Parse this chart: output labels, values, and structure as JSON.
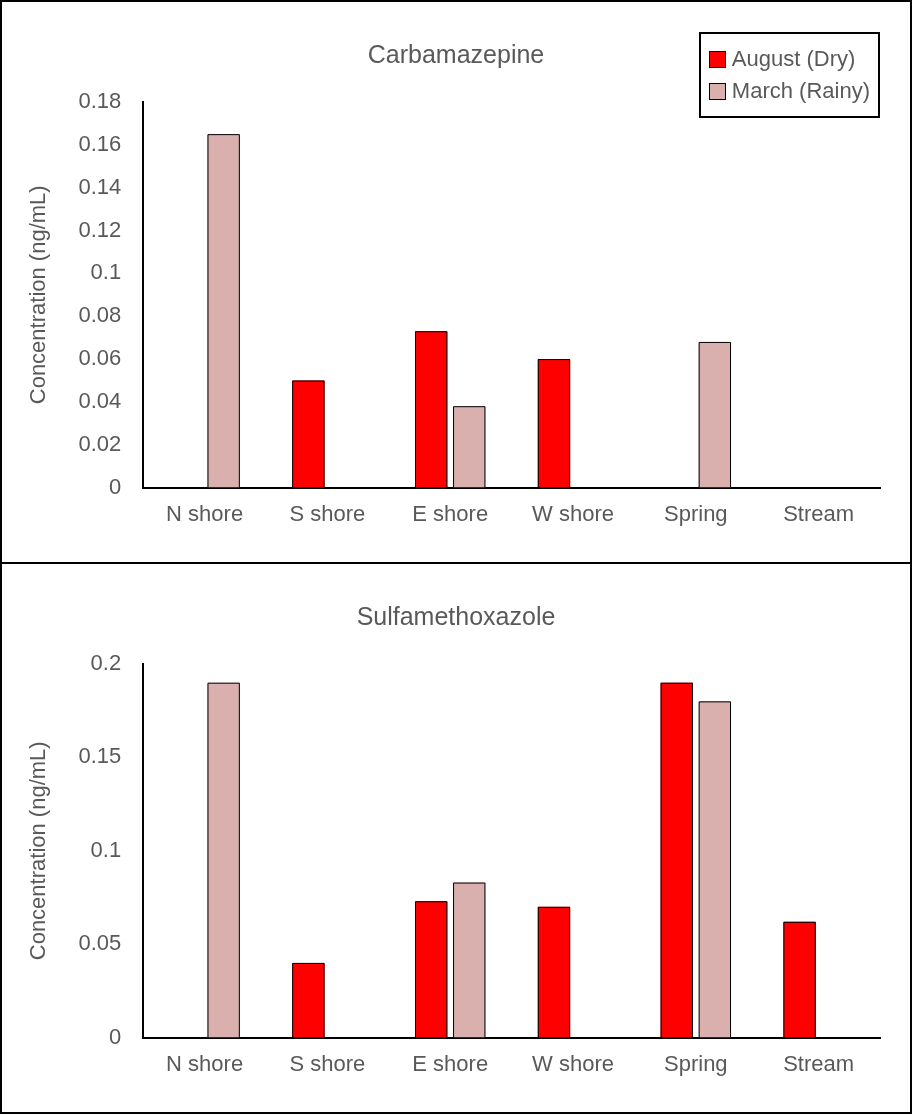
{
  "chart_data": [
    {
      "type": "bar",
      "title": "Carbamazepine",
      "ylabel": "Concentration (ng/mL)",
      "categories": [
        "N shore",
        "S shore",
        "E shore",
        "W shore",
        "Spring",
        "Stream"
      ],
      "series": [
        {
          "name": "August (Dry)",
          "color": "#ff0000",
          "values": [
            null,
            0.05,
            0.073,
            0.06,
            null,
            null
          ]
        },
        {
          "name": "March (Rainy)",
          "color": "#d9b0ae",
          "values": [
            0.165,
            null,
            0.038,
            null,
            0.068,
            null
          ]
        }
      ],
      "ylim": [
        0,
        0.18
      ],
      "yticks": [
        0,
        0.02,
        0.04,
        0.06,
        0.08,
        0.1,
        0.12,
        0.14,
        0.16,
        0.18
      ],
      "grid": false,
      "legend": "top right"
    },
    {
      "type": "bar",
      "title": "Sulfamethoxazole",
      "ylabel": "Concentration (ng/mL)",
      "categories": [
        "N shore",
        "S shore",
        "E shore",
        "W shore",
        "Spring",
        "Stream"
      ],
      "series": [
        {
          "color": "#ff0000",
          "values": [
            null,
            0.04,
            0.073,
            0.07,
            0.19,
            0.062
          ]
        },
        {
          "color": "#d9b0ae",
          "values": [
            0.19,
            null,
            0.083,
            null,
            0.18,
            null
          ]
        }
      ],
      "ylim": [
        0,
        0.2
      ],
      "yticks": [
        0,
        0.05,
        0.1,
        0.15,
        0.2
      ],
      "grid": false,
      "legend": false
    }
  ]
}
